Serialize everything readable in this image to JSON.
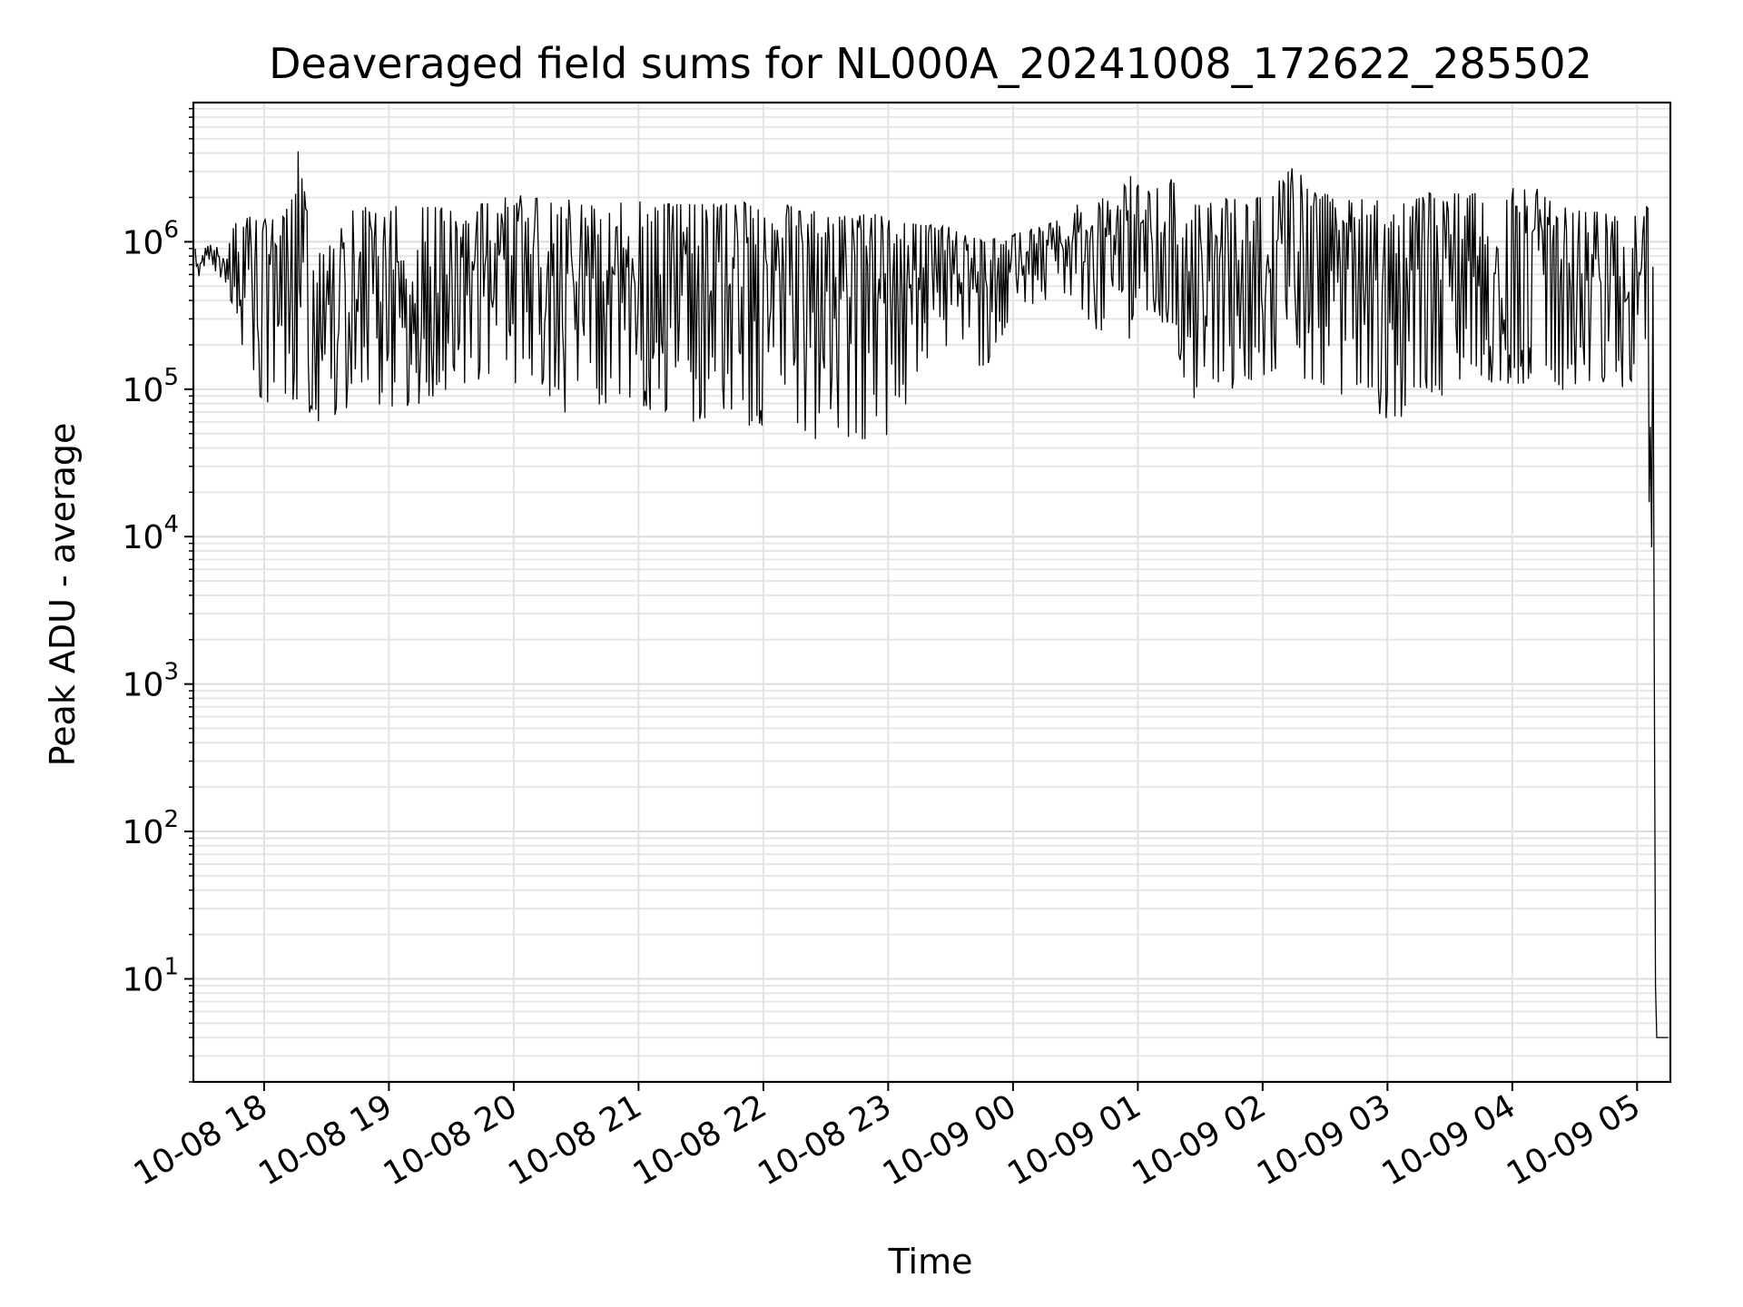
{
  "chart_data": {
    "type": "line",
    "title": "Deaveraged field sums for NL000A_20241008_172622_285502",
    "xlabel": "Time",
    "ylabel": "Peak ADU - average",
    "yscale": "log",
    "ylim": [
      2,
      8800000
    ],
    "xlim": [
      "2024-10-08 17:26",
      "2024-10-09 05:16"
    ],
    "grid": true,
    "line_color": "#000000",
    "x_ticks": [
      {
        "t": "2024-10-08 18:00",
        "label": "10-08 18"
      },
      {
        "t": "2024-10-08 19:00",
        "label": "10-08 19"
      },
      {
        "t": "2024-10-08 20:00",
        "label": "10-08 20"
      },
      {
        "t": "2024-10-08 21:00",
        "label": "10-08 21"
      },
      {
        "t": "2024-10-08 22:00",
        "label": "10-08 22"
      },
      {
        "t": "2024-10-08 23:00",
        "label": "10-08 23"
      },
      {
        "t": "2024-10-09 00:00",
        "label": "10-09 00"
      },
      {
        "t": "2024-10-09 01:00",
        "label": "10-09 01"
      },
      {
        "t": "2024-10-09 02:00",
        "label": "10-09 02"
      },
      {
        "t": "2024-10-09 03:00",
        "label": "10-09 03"
      },
      {
        "t": "2024-10-09 04:00",
        "label": "10-09 04"
      },
      {
        "t": "2024-10-09 05:00",
        "label": "10-09 05"
      }
    ],
    "y_ticks": [
      {
        "value": 10,
        "base": "10",
        "exp": "1"
      },
      {
        "value": 100,
        "base": "10",
        "exp": "2"
      },
      {
        "value": 1000,
        "base": "10",
        "exp": "3"
      },
      {
        "value": 10000,
        "base": "10",
        "exp": "4"
      },
      {
        "value": 100000,
        "base": "10",
        "exp": "5"
      },
      {
        "value": 1000000,
        "base": "10",
        "exp": "6"
      }
    ],
    "series": [
      {
        "x": [
          "2024-10-08 17:27",
          "2024-10-08 17:31",
          "2024-10-08 17:36",
          "2024-10-08 17:41",
          "2024-10-08 17:46",
          "2024-10-08 17:51",
          "2024-10-08 17:56",
          "2024-10-08 18:01",
          "2024-10-08 18:06",
          "2024-10-08 18:11",
          "2024-10-08 18:16",
          "2024-10-08 18:21",
          "2024-10-08 18:26",
          "2024-10-08 18:31",
          "2024-10-08 18:36",
          "2024-10-08 18:41",
          "2024-10-08 18:46",
          "2024-10-08 18:51",
          "2024-10-08 18:56",
          "2024-10-08 19:06",
          "2024-10-08 19:16",
          "2024-10-08 19:26",
          "2024-10-08 19:36",
          "2024-10-08 19:46",
          "2024-10-08 19:56",
          "2024-10-08 20:06",
          "2024-10-08 20:16",
          "2024-10-08 20:26",
          "2024-10-08 20:36",
          "2024-10-08 20:46",
          "2024-10-08 20:56",
          "2024-10-08 21:06",
          "2024-10-08 21:16",
          "2024-10-08 21:26",
          "2024-10-08 21:36",
          "2024-10-08 21:46",
          "2024-10-08 21:56",
          "2024-10-08 22:06",
          "2024-10-08 22:16",
          "2024-10-08 22:26",
          "2024-10-08 22:36",
          "2024-10-08 22:46",
          "2024-10-08 22:56",
          "2024-10-08 23:06",
          "2024-10-08 23:16",
          "2024-10-08 23:26",
          "2024-10-08 23:36",
          "2024-10-08 23:46",
          "2024-10-08 23:56",
          "2024-10-09 00:06",
          "2024-10-09 00:16",
          "2024-10-09 00:26",
          "2024-10-09 00:36",
          "2024-10-09 00:46",
          "2024-10-09 00:56",
          "2024-10-09 01:06",
          "2024-10-09 01:16",
          "2024-10-09 01:26",
          "2024-10-09 01:36",
          "2024-10-09 01:46",
          "2024-10-09 01:56",
          "2024-10-09 02:06",
          "2024-10-09 02:16",
          "2024-10-09 02:26",
          "2024-10-09 02:36",
          "2024-10-09 02:46",
          "2024-10-09 02:56",
          "2024-10-09 03:06",
          "2024-10-09 03:16",
          "2024-10-09 03:26",
          "2024-10-09 03:36",
          "2024-10-09 03:46",
          "2024-10-09 03:56",
          "2024-10-09 04:06",
          "2024-10-09 04:16",
          "2024-10-09 04:26",
          "2024-10-09 04:36",
          "2024-10-09 04:46",
          "2024-10-09 04:56",
          "2024-10-09 05:04",
          "2024-10-09 05:08",
          "2024-10-09 05:09",
          "2024-10-09 05:16"
        ],
        "high": [
          1000000,
          900000,
          1000000,
          800000,
          1400000,
          1500000,
          1450000,
          1500000,
          1600000,
          1700000,
          4500000,
          1600000,
          1100000,
          900000,
          1300000,
          1700000,
          1750000,
          1700000,
          1800000,
          1750000,
          1750000,
          1700000,
          1500000,
          1900000,
          2000000,
          2100000,
          1900000,
          2000000,
          1800000,
          1800000,
          1900000,
          1850000,
          1800000,
          1800000,
          1850000,
          1900000,
          1800000,
          1900000,
          1700000,
          1600000,
          1500000,
          1500000,
          1700000,
          1400000,
          1300000,
          1300000,
          1200000,
          1000000,
          1100000,
          1200000,
          1300000,
          1500000,
          2200000,
          1900000,
          2900000,
          2200000,
          2700000,
          1800000,
          1900000,
          2000000,
          1900000,
          2500000,
          3400000,
          2200000,
          2000000,
          2000000,
          1900000,
          1800000,
          2000000,
          2400000,
          2100000,
          2200000,
          2000000,
          2800000,
          2000000,
          1700000,
          1600000,
          1600000,
          1500000,
          1800000,
          1500000,
          4,
          4
        ],
        "low": [
          550000,
          600000,
          650000,
          450000,
          250000,
          180000,
          90000,
          80000,
          90000,
          70000,
          80000,
          52000,
          55000,
          90000,
          45000,
          90000,
          100000,
          100000,
          75000,
          75000,
          80000,
          95000,
          100000,
          110000,
          95000,
          120000,
          80000,
          68000,
          75000,
          75000,
          70000,
          72000,
          70000,
          60000,
          62000,
          60000,
          55000,
          60000,
          55000,
          45000,
          40000,
          48000,
          36000,
          55000,
          150000,
          180000,
          200000,
          130000,
          250000,
          350000,
          380000,
          300000,
          250000,
          250000,
          220000,
          300000,
          250000,
          75000,
          80000,
          100000,
          110000,
          100000,
          120000,
          110000,
          90000,
          100000,
          65000,
          60000,
          100000,
          90000,
          120000,
          110000,
          100000,
          110000,
          120000,
          95000,
          110000,
          100000,
          100000,
          200000,
          4,
          4,
          4
        ]
      }
    ]
  }
}
